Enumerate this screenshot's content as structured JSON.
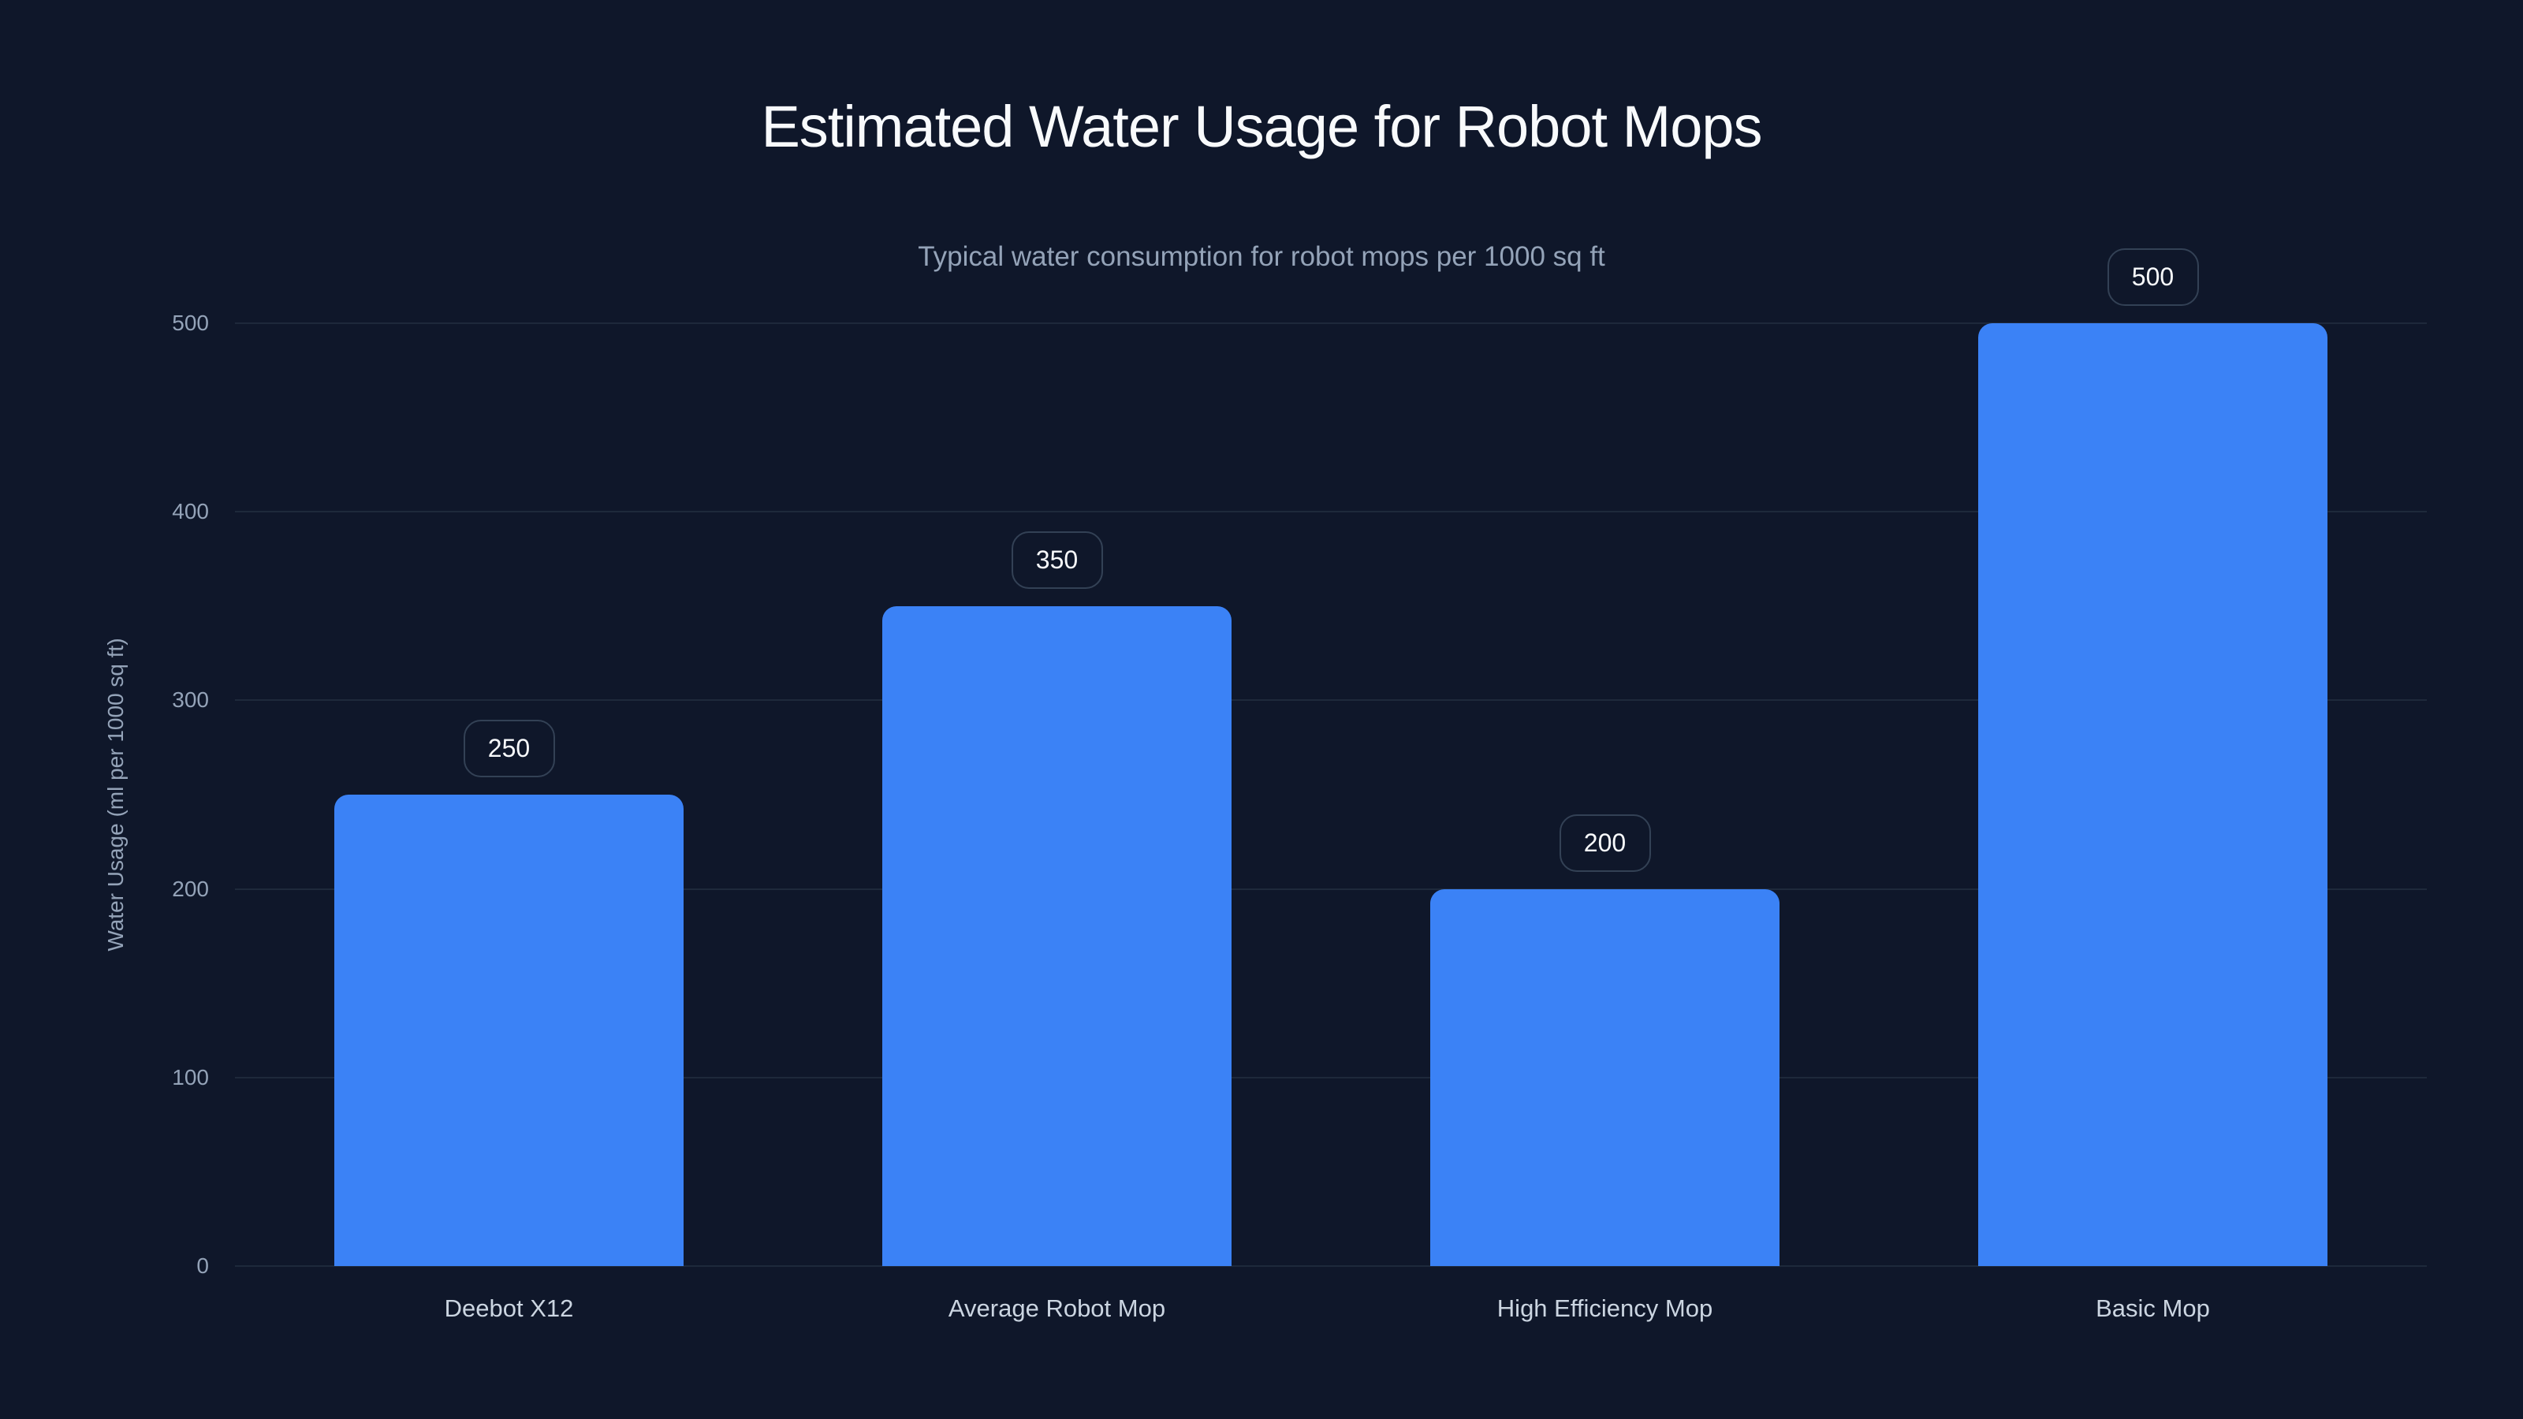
{
  "chart_data": {
    "type": "bar",
    "title": "Estimated Water Usage for Robot Mops",
    "subtitle": "Typical water consumption for robot mops per 1000 sq ft",
    "xlabel": "",
    "ylabel": "Water Usage (ml per 1000 sq ft)",
    "categories": [
      "Deebot X12",
      "Average Robot Mop",
      "High Efficiency Mop",
      "Basic Mop"
    ],
    "values": [
      250,
      350,
      200,
      500
    ],
    "value_labels": [
      "250",
      "350",
      "200",
      "500"
    ],
    "ylim": [
      0,
      500
    ],
    "yticks": [
      "0",
      "100",
      "200",
      "300",
      "400",
      "500"
    ],
    "grid": true,
    "legend": null,
    "colors": {
      "bar": "#3b82f6",
      "background": "#0f172a",
      "grid": "#1e293b"
    }
  }
}
